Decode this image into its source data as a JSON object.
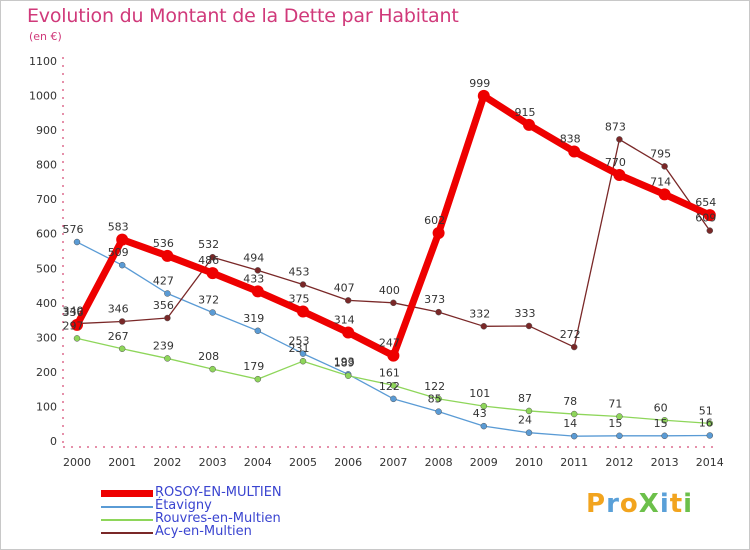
{
  "chart_data": {
    "type": "line",
    "title": "Evolution du Montant de la Dette par Habitant",
    "subtitle": "(en €)",
    "x": [
      "2000",
      "2001",
      "2002",
      "2003",
      "2004",
      "2005",
      "2006",
      "2007",
      "2008",
      "2009",
      "2010",
      "2011",
      "2012",
      "2013",
      "2014"
    ],
    "ylim": [
      0,
      1100
    ],
    "yticks": [
      0,
      100,
      200,
      300,
      400,
      500,
      600,
      700,
      800,
      900,
      1000,
      1100
    ],
    "grid": false,
    "legend_position": "bottom-left",
    "series": [
      {
        "name": "ROSOY-EN-MULTIEN",
        "color": "#ee0000",
        "values": [
          336,
          583,
          536,
          486,
          433,
          375,
          314,
          247,
          602,
          999,
          915,
          838,
          770,
          714,
          654
        ]
      },
      {
        "name": "Étavigny",
        "color": "#5a9bd5",
        "values": [
          576,
          509,
          427,
          372,
          319,
          253,
          193,
          122,
          85,
          43,
          24,
          14,
          15,
          15,
          16
        ]
      },
      {
        "name": "Rouvres-en-Multien",
        "color": "#8ed65a",
        "values": [
          297,
          267,
          239,
          208,
          179,
          231,
          189,
          161,
          122,
          101,
          87,
          78,
          71,
          60,
          51
        ]
      },
      {
        "name": "Acy-en-Multien",
        "color": "#7a2828",
        "values": [
          340,
          346,
          356,
          532,
          494,
          453,
          407,
          400,
          373,
          332,
          333,
          272,
          873,
          795,
          609
        ]
      }
    ]
  },
  "logo": {
    "text": "ProXiti"
  }
}
